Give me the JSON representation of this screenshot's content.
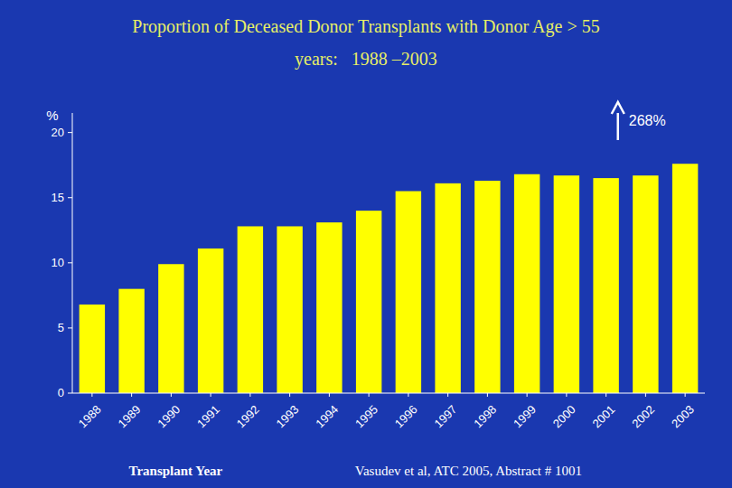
{
  "chart_data": {
    "type": "bar",
    "title": "Proportion of Deceased Donor Transplants with Donor Age > 55",
    "subtitle": "years:   1988 –2003",
    "categories": [
      "1988",
      "1989",
      "1990",
      "1991",
      "1992",
      "1993",
      "1994",
      "1995",
      "1996",
      "1997",
      "1998",
      "1999",
      "2000",
      "2001",
      "2002",
      "2003"
    ],
    "values": [
      6.8,
      8.0,
      9.9,
      11.1,
      12.8,
      12.8,
      13.1,
      14.0,
      15.5,
      16.1,
      16.3,
      16.8,
      16.7,
      16.5,
      16.7,
      17.6
    ],
    "color": "#FFFF00",
    "x_label": "Transplant Year",
    "y_label": "%",
    "annotations": [
      "268%",
      "Vasudev et al, ATC 2005, Abstract # 1001"
    ],
    "ylim": [
      0,
      21.5
    ],
    "yticks": [
      0,
      5,
      10,
      15,
      20
    ],
    "grid": false
  }
}
